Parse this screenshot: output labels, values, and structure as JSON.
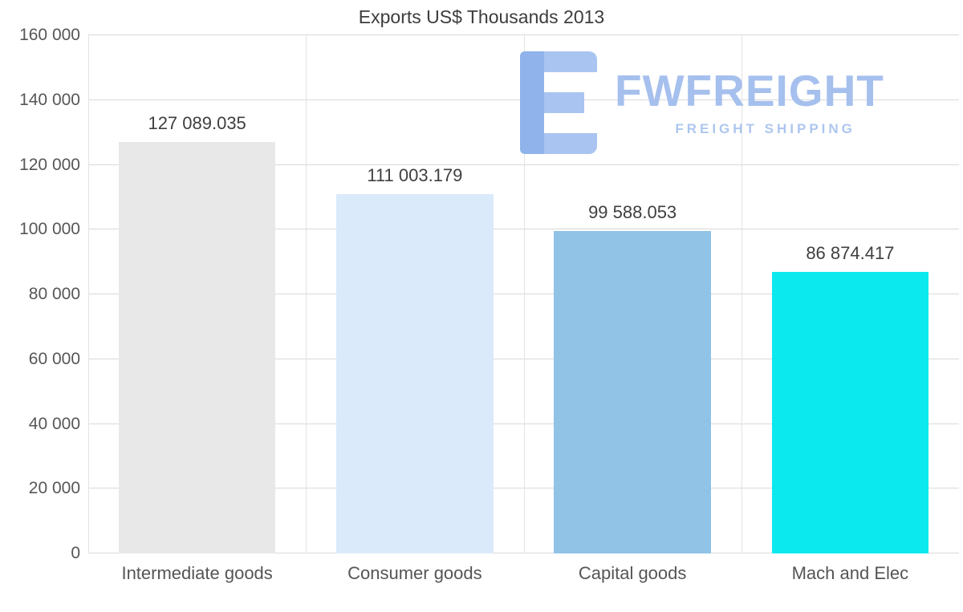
{
  "chart_data": {
    "type": "bar",
    "title": "Exports US$ Thousands 2013",
    "categories": [
      "Intermediate goods",
      "Consumer goods",
      "Capital goods",
      "Mach and Elec"
    ],
    "values": [
      127089.035,
      111003.179,
      99588.053,
      86874.417
    ],
    "value_labels": [
      "127 089.035",
      "111 003.179",
      "99 588.053",
      "86 874.417"
    ],
    "bar_colors": [
      "#e8e8e8",
      "#daeafa",
      "#90c3e6",
      "#0ce9ee"
    ],
    "xlabel": "",
    "ylabel": "",
    "ylim": [
      0,
      160000
    ],
    "y_ticks": [
      {
        "value": 0,
        "label": "0"
      },
      {
        "value": 20000,
        "label": "20 000"
      },
      {
        "value": 40000,
        "label": "40 000"
      },
      {
        "value": 60000,
        "label": "60 000"
      },
      {
        "value": 80000,
        "label": "80 000"
      },
      {
        "value": 100000,
        "label": "100 000"
      },
      {
        "value": 120000,
        "label": "120 000"
      },
      {
        "value": 140000,
        "label": "140 000"
      },
      {
        "value": 160000,
        "label": "160 000"
      }
    ],
    "grid": true,
    "legend": false
  },
  "watermark": {
    "brand": "FWFREIGHT",
    "tagline": "FREIGHT SHIPPING",
    "brand_color": "#a6c0ee"
  }
}
